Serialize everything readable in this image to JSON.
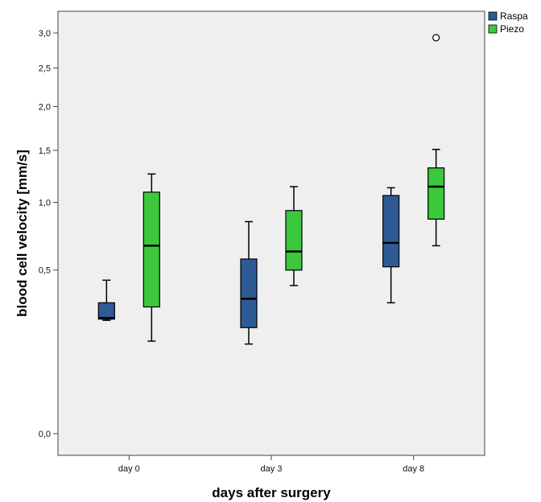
{
  "chart_data": {
    "type": "box",
    "title": "",
    "xlabel": "days after surgery",
    "ylabel": "blood cell velocity [mm/s]",
    "y_scale": "sqrt",
    "ylim": [
      0.0,
      3.2
    ],
    "y_ticks": [
      {
        "value": 0.0,
        "label": "0,0"
      },
      {
        "value": 0.5,
        "label": "0,5"
      },
      {
        "value": 1.0,
        "label": "1,0"
      },
      {
        "value": 1.5,
        "label": "1,5"
      },
      {
        "value": 2.0,
        "label": "2,0"
      },
      {
        "value": 2.5,
        "label": "2,5"
      },
      {
        "value": 3.0,
        "label": "3,0"
      }
    ],
    "categories": [
      "day 0",
      "day 3",
      "day 8"
    ],
    "grid": false,
    "legend_position": "top-right",
    "series": [
      {
        "name": "Raspa",
        "color": "#2e5b94",
        "boxes": [
          {
            "min": 0.24,
            "q1": 0.245,
            "median": 0.25,
            "q3": 0.32,
            "max": 0.44
          },
          {
            "min": 0.15,
            "q1": 0.21,
            "median": 0.34,
            "q3": 0.57,
            "max": 0.84
          },
          {
            "min": 0.32,
            "q1": 0.52,
            "median": 0.68,
            "q3": 1.06,
            "max": 1.13
          }
        ],
        "outliers": [
          [],
          [],
          []
        ]
      },
      {
        "name": "Piezo",
        "color": "#3cc83c",
        "boxes": [
          {
            "min": 0.16,
            "q1": 0.3,
            "median": 0.66,
            "q3": 1.09,
            "max": 1.26
          },
          {
            "min": 0.41,
            "q1": 0.5,
            "median": 0.62,
            "q3": 0.93,
            "max": 1.14
          },
          {
            "min": 0.66,
            "q1": 0.86,
            "median": 1.14,
            "q3": 1.32,
            "max": 1.51
          }
        ],
        "outliers": [
          [],
          [],
          [
            2.93
          ]
        ]
      }
    ]
  }
}
